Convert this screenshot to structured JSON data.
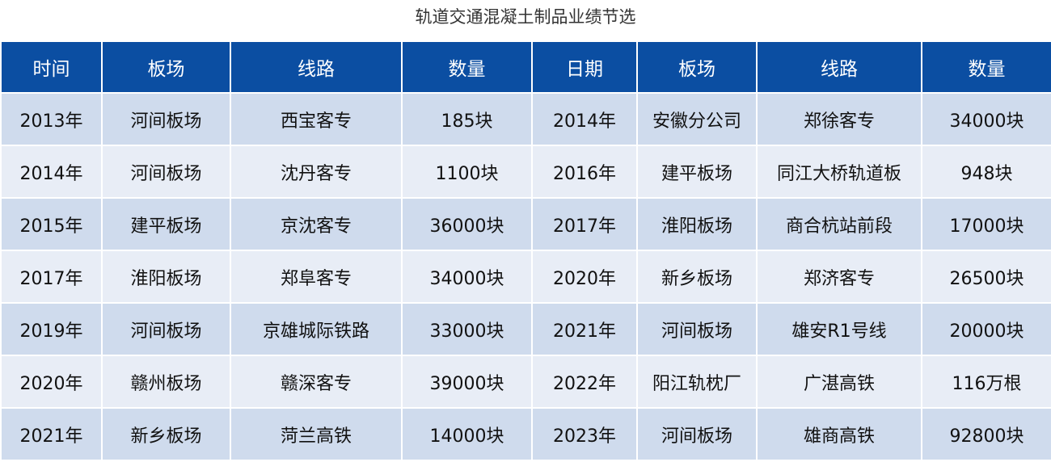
{
  "title": "轨道交通混凝土制品业绩节选",
  "colors": {
    "header_bg": "#0b4ea2",
    "row_odd": "#cfdbed",
    "row_even": "#e8edf6"
  },
  "headers": [
    "时间",
    "板场",
    "线路",
    "数量",
    "日期",
    "板场",
    "线路",
    "数量"
  ],
  "rows": [
    [
      "2013年",
      "河间板场",
      "西宝客专",
      "185块",
      "2014年",
      "安徽分公司",
      "郑徐客专",
      "34000块"
    ],
    [
      "2014年",
      "河间板场",
      "沈丹客专",
      "1100块",
      "2016年",
      "建平板场",
      "同江大桥轨道板",
      "948块"
    ],
    [
      "2015年",
      "建平板场",
      "京沈客专",
      "36000块",
      "2017年",
      "淮阳板场",
      "商合杭站前段",
      "17000块"
    ],
    [
      "2017年",
      "淮阳板场",
      "郑阜客专",
      "34000块",
      "2020年",
      "新乡板场",
      "郑济客专",
      "26500块"
    ],
    [
      "2019年",
      "河间板场",
      "京雄城际铁路",
      "33000块",
      "2021年",
      "河间板场",
      "雄安R1号线",
      "20000块"
    ],
    [
      "2020年",
      "赣州板场",
      "赣深客专",
      "39000块",
      "2022年",
      "阳江轨枕厂",
      "广湛高铁",
      "116万根"
    ],
    [
      "2021年",
      "新乡板场",
      "菏兰高铁",
      "14000块",
      "2023年",
      "河间板场",
      "雄商高铁",
      "92800块"
    ]
  ]
}
